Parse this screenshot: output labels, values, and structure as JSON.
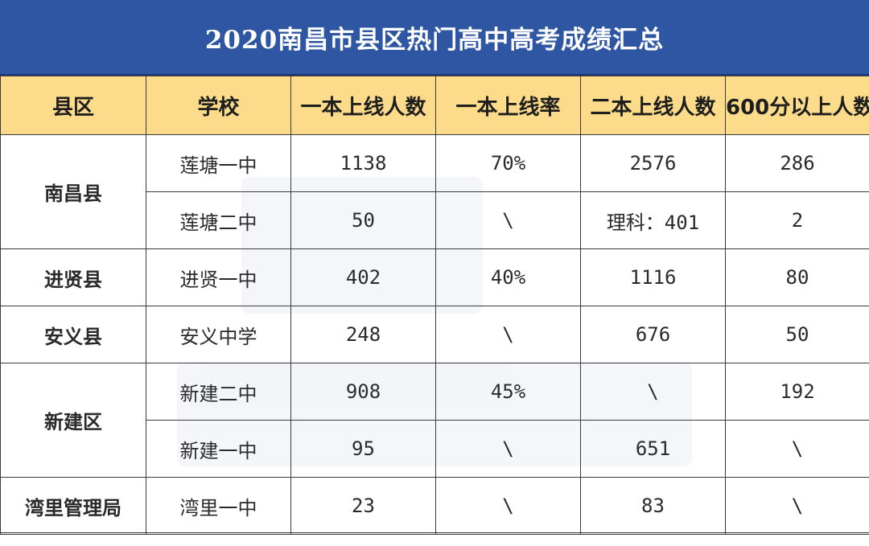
{
  "title": "2020南昌市县区热门高中高考成绩汇总",
  "headers": [
    "县区",
    "学校",
    "一本上线人数",
    "一本上线率",
    "二本上线人数",
    "600分以上人数"
  ],
  "rows": [
    {
      "county": "南昌县",
      "school": "莲塘一中",
      "tier1": "1138",
      "tier1_rate": "70%",
      "tier2": "2576",
      "over600": "286"
    },
    {
      "county": "",
      "school": "莲塘二中",
      "tier1": "50",
      "tier1_rate": "\\",
      "tier2": "理科：401",
      "over600": "2"
    },
    {
      "county": "进贤县",
      "school": "进贤一中",
      "tier1": "402",
      "tier1_rate": "40%",
      "tier2": "1116",
      "over600": "80"
    },
    {
      "county": "安义县",
      "school": "安义中学",
      "tier1": "248",
      "tier1_rate": "\\",
      "tier2": "676",
      "over600": "50"
    },
    {
      "county": "新建区",
      "school": "新建二中",
      "tier1": "908",
      "tier1_rate": "45%",
      "tier2": "\\",
      "over600": "192"
    },
    {
      "county": "",
      "school": "新建一中",
      "tier1": "95",
      "tier1_rate": "\\",
      "tier2": "651",
      "over600": "\\"
    },
    {
      "county": "湾里管理局",
      "school": "湾里一中",
      "tier1": "23",
      "tier1_rate": "\\",
      "tier2": "83",
      "over600": "\\"
    }
  ],
  "colors": {
    "title_bg": "#2f56a3",
    "header_bg": "#fcdc8a",
    "border": "#3a3a3a"
  }
}
